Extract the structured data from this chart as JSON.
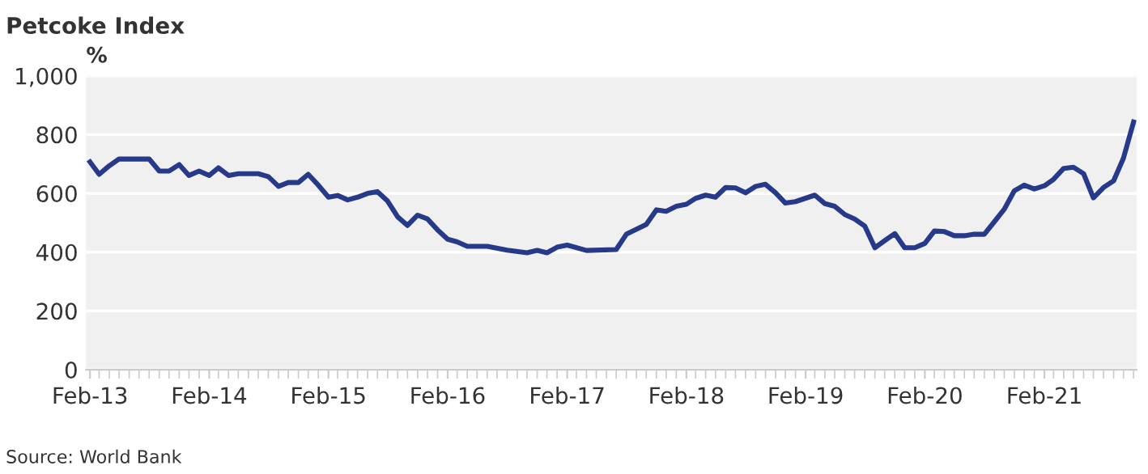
{
  "chart_data": {
    "type": "line",
    "title": "Petcoke Index",
    "ylabel": "%",
    "annotations": [
      "Source: World Bank"
    ],
    "x": [
      "2013-02",
      "2013-03",
      "2013-04",
      "2013-05",
      "2013-08",
      "2013-09",
      "2013-10",
      "2013-11",
      "2013-12",
      "2014-01",
      "2014-02",
      "2014-03",
      "2014-04",
      "2014-05",
      "2014-07",
      "2014-08",
      "2014-09",
      "2014-10",
      "2014-11",
      "2014-12",
      "2015-01",
      "2015-02",
      "2015-03",
      "2015-04",
      "2015-05",
      "2015-06",
      "2015-07",
      "2015-08",
      "2015-09",
      "2015-10",
      "2015-11",
      "2015-12",
      "2016-01",
      "2016-02",
      "2016-03",
      "2016-04",
      "2016-06",
      "2016-08",
      "2016-10",
      "2016-11",
      "2016-12",
      "2017-01",
      "2017-02",
      "2017-04",
      "2017-07",
      "2017-08",
      "2017-10",
      "2017-11",
      "2017-12",
      "2018-01",
      "2018-02",
      "2018-03",
      "2018-04",
      "2018-05",
      "2018-06",
      "2018-07",
      "2018-08",
      "2018-09",
      "2018-10",
      "2018-11",
      "2018-12",
      "2019-01",
      "2019-03",
      "2019-04",
      "2019-05",
      "2019-06",
      "2019-07",
      "2019-08",
      "2019-09",
      "2019-10",
      "2019-11",
      "2019-12",
      "2020-01",
      "2020-02",
      "2020-03",
      "2020-04",
      "2020-05",
      "2020-06",
      "2020-07",
      "2020-08",
      "2020-09",
      "2020-10",
      "2020-11",
      "2020-12",
      "2021-01",
      "2021-02",
      "2021-03",
      "2021-04",
      "2021-05",
      "2021-06",
      "2021-07",
      "2021-08",
      "2021-09",
      "2021-10",
      "2021-11"
    ],
    "series": [
      {
        "color": "#273a8a",
        "values": [
          707,
          665,
          694,
          717,
          717,
          676,
          676,
          698,
          661,
          676,
          661,
          687,
          661,
          667,
          667,
          657,
          624,
          637,
          637,
          665,
          628,
          587,
          593,
          578,
          587,
          600,
          606,
          574,
          520,
          491,
          526,
          513,
          476,
          444,
          435,
          420,
          420,
          407,
          398,
          406,
          398,
          417,
          424,
          406,
          409,
          461,
          494,
          544,
          539,
          556,
          563,
          583,
          594,
          587,
          620,
          619,
          602,
          624,
          631,
          602,
          567,
          572,
          594,
          565,
          556,
          528,
          513,
          489,
          415,
          439,
          463,
          415,
          415,
          430,
          472,
          470,
          456,
          456,
          461,
          461,
          504,
          546,
          609,
          628,
          615,
          626,
          648,
          685,
          689,
          667,
          585,
          620,
          643,
          720,
          843
        ]
      }
    ],
    "xlim": [
      "2013-01-20",
      "2021-11-10"
    ],
    "xticks": [
      {
        "value": "2013-02-01",
        "label": "Feb-13"
      },
      {
        "value": "2014-02-01",
        "label": "Feb-14"
      },
      {
        "value": "2015-02-01",
        "label": "Feb-15"
      },
      {
        "value": "2016-02-01",
        "label": "Feb-16"
      },
      {
        "value": "2017-02-01",
        "label": "Feb-17"
      },
      {
        "value": "2018-02-01",
        "label": "Feb-18"
      },
      {
        "value": "2019-02-01",
        "label": "Feb-19"
      },
      {
        "value": "2020-02-01",
        "label": "Feb-20"
      },
      {
        "value": "2021-02-01",
        "label": "Feb-21"
      }
    ],
    "ylim": [
      0,
      1000
    ],
    "yticks": [
      0,
      200,
      400,
      600,
      800,
      {
        "value": 1000,
        "label": "1,000"
      }
    ],
    "grid": "y",
    "legend": false,
    "marker": "none",
    "line_style": "solid"
  }
}
